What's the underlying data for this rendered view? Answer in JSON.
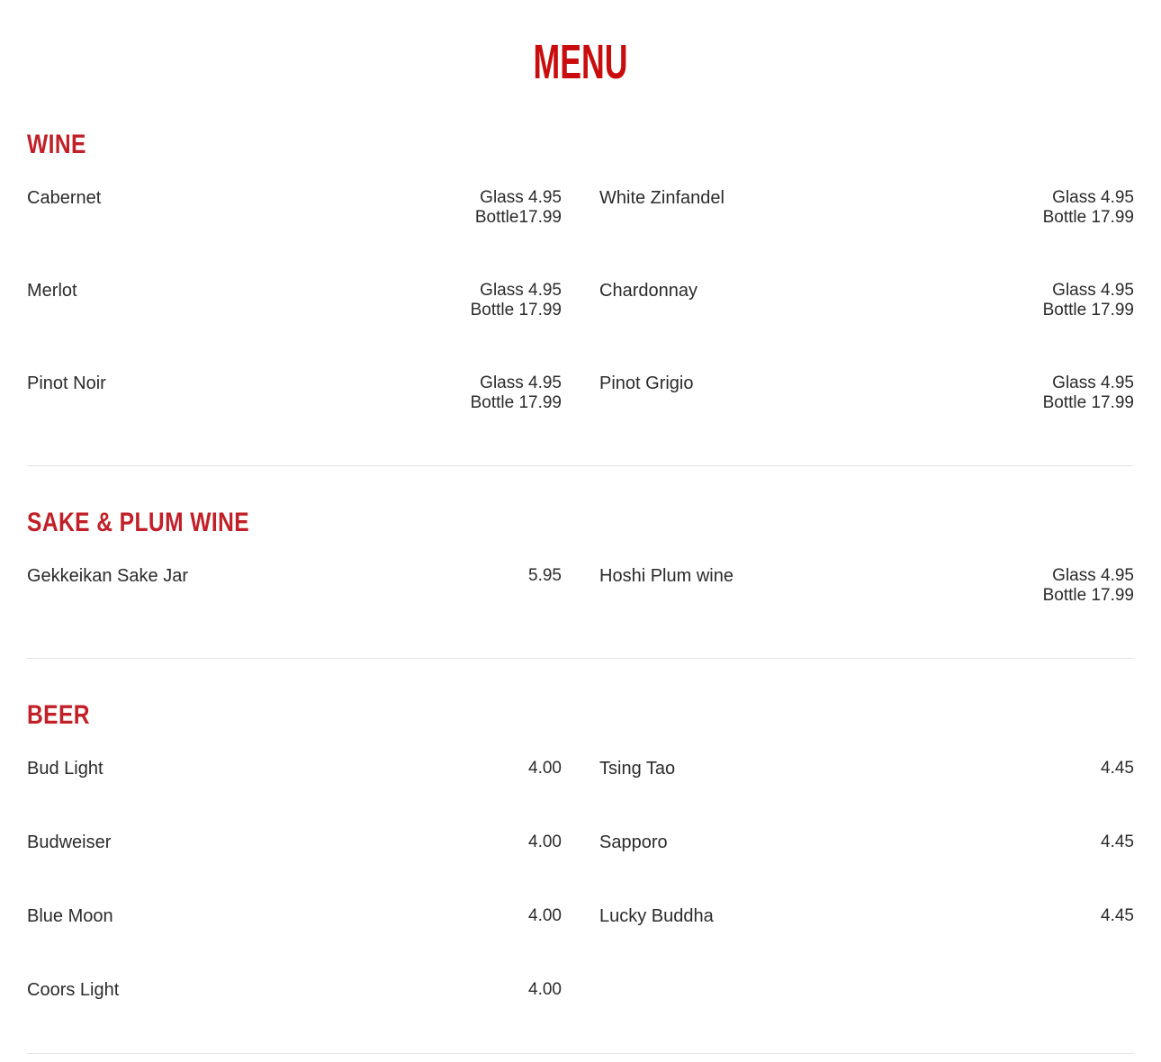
{
  "page": {
    "title": "MENU"
  },
  "colors": {
    "title_red": "#c90d0e",
    "heading_red": "#c22028",
    "text": "#2b2b2b",
    "divider": "#e4e4e4"
  },
  "sections": [
    {
      "heading": "WINE",
      "items": [
        {
          "name": "Cabernet",
          "price_lines": [
            "Glass 4.95",
            "Bottle17.99"
          ]
        },
        {
          "name": "White Zinfandel",
          "price_lines": [
            "Glass 4.95",
            "Bottle 17.99"
          ]
        },
        {
          "name": "Merlot",
          "price_lines": [
            "Glass 4.95",
            "Bottle 17.99"
          ]
        },
        {
          "name": "Chardonnay",
          "price_lines": [
            "Glass 4.95",
            "Bottle 17.99"
          ]
        },
        {
          "name": "Pinot Noir",
          "price_lines": [
            "Glass 4.95",
            "Bottle 17.99"
          ]
        },
        {
          "name": "Pinot Grigio",
          "price_lines": [
            "Glass 4.95",
            "Bottle 17.99"
          ]
        }
      ]
    },
    {
      "heading": "SAKE & PLUM WINE",
      "items": [
        {
          "name": "Gekkeikan Sake Jar",
          "price_lines": [
            "5.95"
          ]
        },
        {
          "name": "Hoshi Plum wine",
          "price_lines": [
            "Glass 4.95",
            "Bottle 17.99"
          ]
        }
      ]
    },
    {
      "heading": "BEER",
      "items": [
        {
          "name": "Bud Light",
          "price_lines": [
            "4.00"
          ]
        },
        {
          "name": "Tsing Tao",
          "price_lines": [
            "4.45"
          ]
        },
        {
          "name": "Budweiser",
          "price_lines": [
            "4.00"
          ]
        },
        {
          "name": "Sapporo",
          "price_lines": [
            "4.45"
          ]
        },
        {
          "name": "Blue Moon",
          "price_lines": [
            "4.00"
          ]
        },
        {
          "name": "Lucky Buddha",
          "price_lines": [
            "4.45"
          ]
        },
        {
          "name": "Coors Light",
          "price_lines": [
            "4.00"
          ]
        }
      ]
    }
  ]
}
